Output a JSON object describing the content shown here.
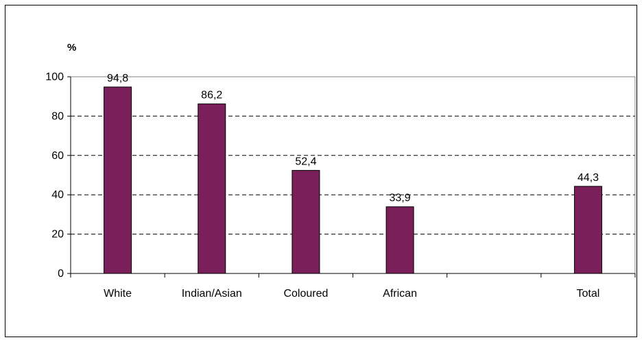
{
  "chart_data": {
    "type": "bar",
    "ylabel": "%",
    "categories": [
      "White",
      "Indian/Asian",
      "Coloured",
      "African",
      "",
      "Total"
    ],
    "values": [
      94.8,
      86.2,
      52.4,
      33.9,
      null,
      44.3
    ],
    "data_labels": [
      "94,8",
      "86,2",
      "52,4",
      "33,9",
      "",
      "44,3"
    ],
    "y_ticks": [
      "0",
      "20",
      "40",
      "60",
      "80",
      "100"
    ],
    "ylim": [
      0,
      100
    ],
    "grid": true,
    "legend": "none",
    "bar_color": "#7B1F5B"
  }
}
